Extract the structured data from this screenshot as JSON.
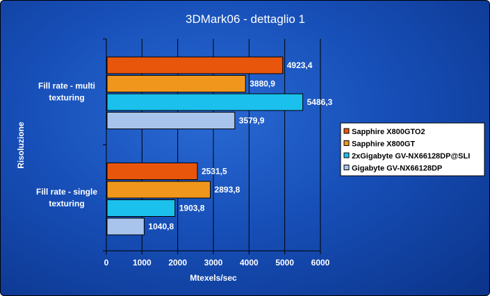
{
  "chart_data": {
    "type": "bar",
    "orientation": "horizontal",
    "title": "3DMark06 - dettaglio 1",
    "xlabel": "Mtexels/sec",
    "ylabel": "Risoluzione",
    "xlim": [
      0,
      6000
    ],
    "xticks": [
      "0",
      "1000",
      "2000",
      "3000",
      "4000",
      "5000",
      "6000"
    ],
    "grid": true,
    "legend_position": "right",
    "categories": [
      [
        "Fill rate - multi",
        "texturing"
      ],
      [
        "Fill rate - single",
        "texturing"
      ]
    ],
    "series": [
      {
        "name": "Sapphire X800GTO2",
        "color": "#e8560c",
        "values": [
          4923.4,
          2531.5
        ],
        "labels": [
          "4923,4",
          "2531,5"
        ]
      },
      {
        "name": "Sapphire X800GT",
        "color": "#f0961c",
        "values": [
          3880.9,
          2893.8
        ],
        "labels": [
          "3880,9",
          "2893,8"
        ]
      },
      {
        "name": "2xGigabyte GV-NX66128DP@SLI",
        "color": "#1cc0ec",
        "values": [
          5486.3,
          1903.8
        ],
        "labels": [
          "5486,3",
          "1903,8"
        ]
      },
      {
        "name": "Gigabyte GV-NX66128DP",
        "color": "#a8c4ec",
        "values": [
          3579.9,
          1040.8
        ],
        "labels": [
          "3579,9",
          "1040,8"
        ]
      }
    ]
  }
}
